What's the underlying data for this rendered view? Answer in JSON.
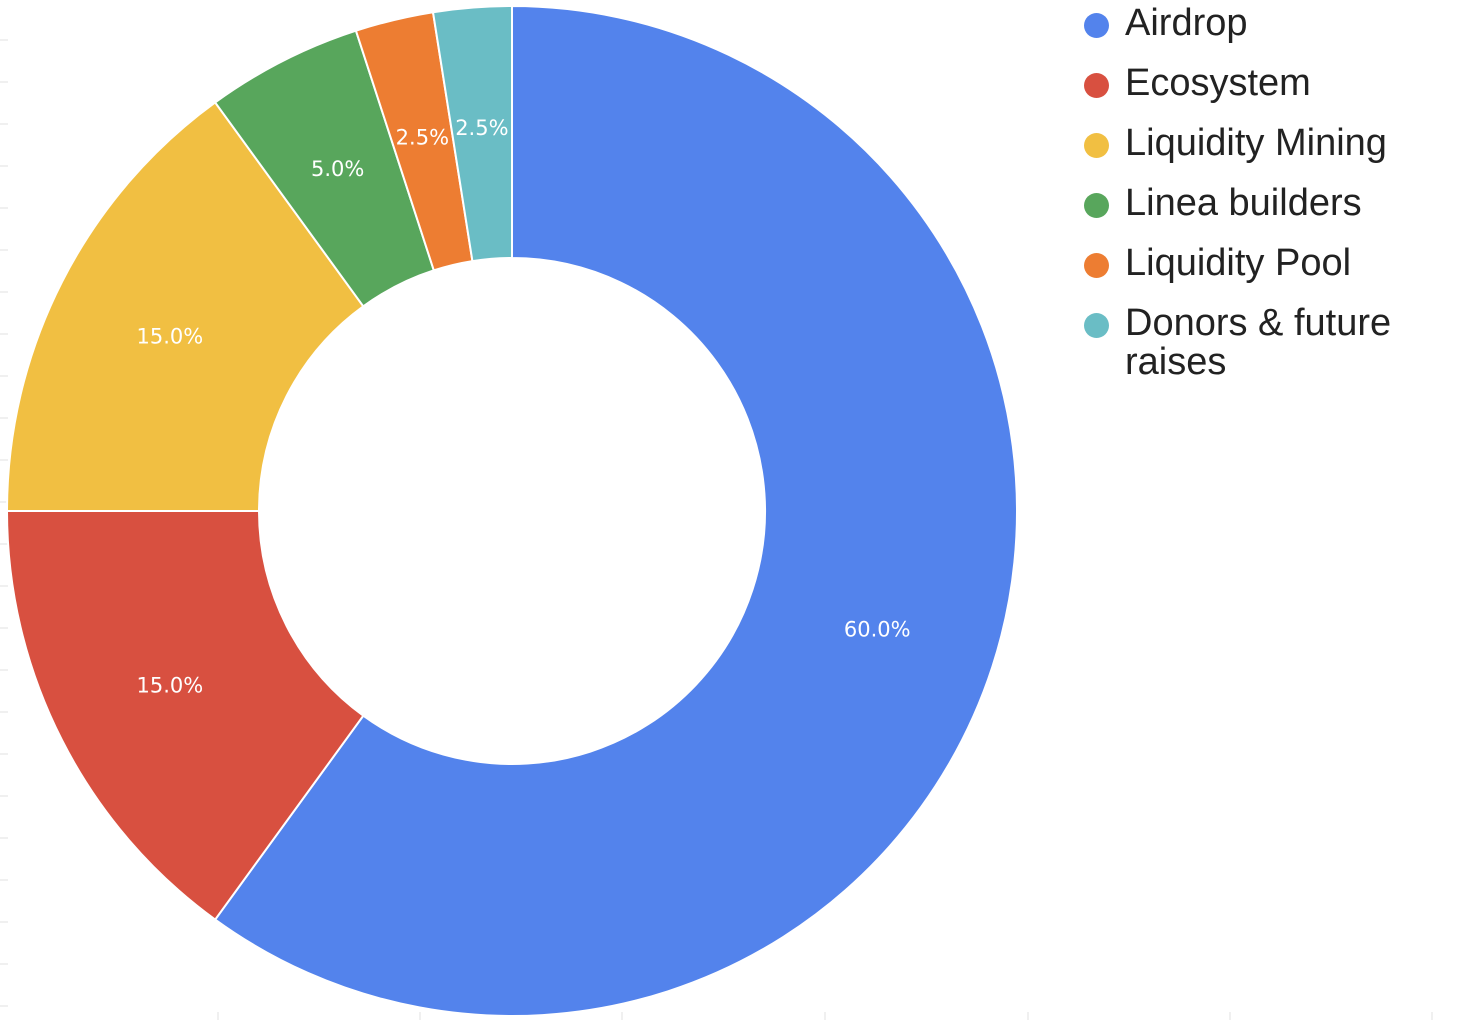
{
  "chart_data": {
    "type": "pie",
    "variant": "donut",
    "legend_position": "right",
    "series": [
      {
        "name": "Airdrop",
        "value": 60.0,
        "label": "60.0%",
        "color": "#5383EC"
      },
      {
        "name": "Ecosystem",
        "value": 15.0,
        "label": "15.0%",
        "color": "#D85040"
      },
      {
        "name": "Liquidity Mining",
        "value": 15.0,
        "label": "15.0%",
        "color": "#F1BF42"
      },
      {
        "name": "Linea builders",
        "value": 5.0,
        "label": "5.0%",
        "color": "#58A65C"
      },
      {
        "name": "Liquidity Pool",
        "value": 2.5,
        "label": "2.5%",
        "color": "#ED7D32"
      },
      {
        "name": "Donors & future raises",
        "value": 2.5,
        "label": "2.5%",
        "color": "#6ABDC5"
      }
    ]
  }
}
